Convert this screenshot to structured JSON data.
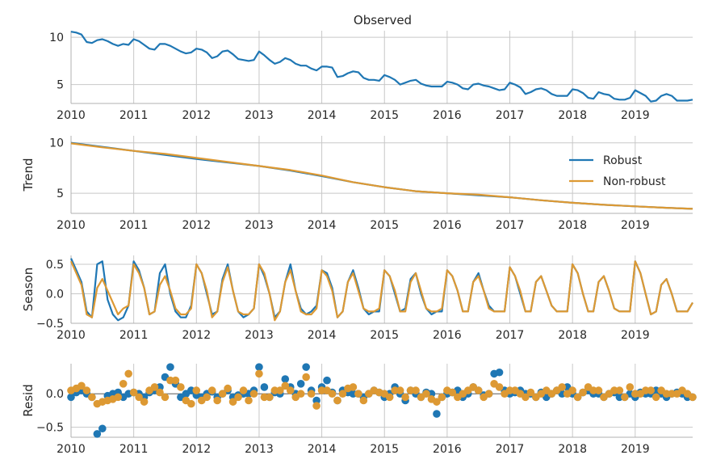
{
  "chart_data": [
    {
      "type": "line",
      "title": "Observed",
      "ylabel": "",
      "ylim": [
        3.0,
        10.7
      ],
      "yticks": [
        5,
        10
      ],
      "xlim": [
        2010.0,
        2019.9167
      ],
      "xticks": [
        2010,
        2011,
        2012,
        2013,
        2014,
        2015,
        2016,
        2017,
        2018,
        2019
      ],
      "grid": true,
      "colors": {
        "Robust": "#1f77b4"
      },
      "series": [
        {
          "color_key": "Robust",
          "x": [
            2010.0,
            2010.0833,
            2010.1667,
            2010.25,
            2010.3333,
            2010.4167,
            2010.5,
            2010.5833,
            2010.6667,
            2010.75,
            2010.8333,
            2010.9167,
            2011.0,
            2011.0833,
            2011.1667,
            2011.25,
            2011.3333,
            2011.4167,
            2011.5,
            2011.5833,
            2011.6667,
            2011.75,
            2011.8333,
            2011.9167,
            2012.0,
            2012.0833,
            2012.1667,
            2012.25,
            2012.3333,
            2012.4167,
            2012.5,
            2012.5833,
            2012.6667,
            2012.75,
            2012.8333,
            2012.9167,
            2013.0,
            2013.0833,
            2013.1667,
            2013.25,
            2013.3333,
            2013.4167,
            2013.5,
            2013.5833,
            2013.6667,
            2013.75,
            2013.8333,
            2013.9167,
            2014.0,
            2014.0833,
            2014.1667,
            2014.25,
            2014.3333,
            2014.4167,
            2014.5,
            2014.5833,
            2014.6667,
            2014.75,
            2014.8333,
            2014.9167,
            2015.0,
            2015.0833,
            2015.1667,
            2015.25,
            2015.3333,
            2015.4167,
            2015.5,
            2015.5833,
            2015.6667,
            2015.75,
            2015.8333,
            2015.9167,
            2016.0,
            2016.0833,
            2016.1667,
            2016.25,
            2016.3333,
            2016.4167,
            2016.5,
            2016.5833,
            2016.6667,
            2016.75,
            2016.8333,
            2016.9167,
            2017.0,
            2017.0833,
            2017.1667,
            2017.25,
            2017.3333,
            2017.4167,
            2017.5,
            2017.5833,
            2017.6667,
            2017.75,
            2017.8333,
            2017.9167,
            2018.0,
            2018.0833,
            2018.1667,
            2018.25,
            2018.3333,
            2018.4167,
            2018.5,
            2018.5833,
            2018.6667,
            2018.75,
            2018.8333,
            2018.9167,
            2019.0,
            2019.0833,
            2019.1667,
            2019.25,
            2019.3333,
            2019.4167,
            2019.5,
            2019.5833,
            2019.6667,
            2019.75,
            2019.8333,
            2019.9167
          ],
          "values": [
            10.6,
            10.5,
            10.3,
            9.5,
            9.4,
            9.7,
            9.8,
            9.6,
            9.3,
            9.1,
            9.3,
            9.2,
            9.8,
            9.6,
            9.2,
            8.8,
            8.7,
            9.3,
            9.3,
            9.1,
            8.8,
            8.5,
            8.3,
            8.4,
            8.8,
            8.7,
            8.4,
            7.8,
            8.0,
            8.5,
            8.6,
            8.2,
            7.7,
            7.6,
            7.5,
            7.6,
            8.5,
            8.1,
            7.6,
            7.2,
            7.4,
            7.8,
            7.6,
            7.2,
            7.0,
            7.0,
            6.7,
            6.5,
            6.9,
            6.9,
            6.8,
            5.8,
            5.9,
            6.2,
            6.4,
            6.3,
            5.7,
            5.5,
            5.5,
            5.4,
            6.0,
            5.8,
            5.5,
            5.0,
            5.2,
            5.4,
            5.5,
            5.1,
            4.9,
            4.8,
            4.8,
            4.8,
            5.3,
            5.2,
            5.0,
            4.6,
            4.5,
            5.0,
            5.1,
            4.9,
            4.8,
            4.6,
            4.4,
            4.5,
            5.2,
            5.0,
            4.7,
            4.0,
            4.2,
            4.5,
            4.6,
            4.4,
            4.0,
            3.8,
            3.8,
            3.8,
            4.5,
            4.4,
            4.1,
            3.6,
            3.5,
            4.2,
            4.0,
            3.9,
            3.5,
            3.4,
            3.4,
            3.6,
            4.4,
            4.1,
            3.8,
            3.2,
            3.3,
            3.8,
            4.0,
            3.8,
            3.3,
            3.3,
            3.3,
            3.4
          ]
        }
      ]
    },
    {
      "type": "line",
      "title": "",
      "ylabel": "Trend",
      "ylim": [
        3.0,
        10.7
      ],
      "yticks": [
        5,
        10
      ],
      "xlim": [
        2010.0,
        2019.9167
      ],
      "xticks": [
        2010,
        2011,
        2012,
        2013,
        2014,
        2015,
        2016,
        2017,
        2018,
        2019
      ],
      "grid": true,
      "legend": {
        "position": "right",
        "entries": [
          "Robust",
          "Non-robust"
        ]
      },
      "colors": {
        "Robust": "#1f77b4",
        "Non-robust": "#dd9933"
      },
      "series": [
        {
          "name": "Robust",
          "x": [
            2010.0,
            2010.5,
            2011.0,
            2011.5,
            2012.0,
            2012.5,
            2013.0,
            2013.5,
            2014.0,
            2014.5,
            2015.0,
            2015.5,
            2016.0,
            2016.5,
            2017.0,
            2017.5,
            2018.0,
            2018.5,
            2019.0,
            2019.5,
            2019.9167
          ],
          "values": [
            10.0,
            9.6,
            9.2,
            8.8,
            8.4,
            8.05,
            7.7,
            7.25,
            6.7,
            6.1,
            5.6,
            5.2,
            5.0,
            4.8,
            4.6,
            4.3,
            4.05,
            3.85,
            3.7,
            3.55,
            3.45
          ]
        },
        {
          "name": "Non-robust",
          "x": [
            2010.0,
            2010.5,
            2011.0,
            2011.5,
            2012.0,
            2012.5,
            2013.0,
            2013.5,
            2014.0,
            2014.5,
            2015.0,
            2015.5,
            2016.0,
            2016.5,
            2017.0,
            2017.5,
            2018.0,
            2018.5,
            2019.0,
            2019.5,
            2019.9167
          ],
          "values": [
            9.95,
            9.55,
            9.2,
            8.9,
            8.5,
            8.1,
            7.7,
            7.3,
            6.75,
            6.1,
            5.6,
            5.2,
            5.0,
            4.85,
            4.6,
            4.3,
            4.05,
            3.85,
            3.7,
            3.55,
            3.45
          ]
        }
      ]
    },
    {
      "type": "line",
      "title": "",
      "ylabel": "Season",
      "ylim": [
        -0.5,
        0.65
      ],
      "yticks": [
        0.5,
        0.0,
        -0.5
      ],
      "ytick_labels": [
        "0.5",
        "0.0",
        "−0.5"
      ],
      "xlim": [
        2010.0,
        2019.9167
      ],
      "xticks": [
        2010,
        2011,
        2012,
        2013,
        2014,
        2015,
        2016,
        2017,
        2018,
        2019
      ],
      "grid": true,
      "colors": {
        "Robust": "#1f77b4",
        "Non-robust": "#dd9933"
      },
      "series": [
        {
          "color_key": "Robust",
          "x_start": 2010.0,
          "x_step": 0.08333,
          "values": [
            0.6,
            0.4,
            0.2,
            -0.3,
            -0.4,
            0.5,
            0.55,
            -0.1,
            -0.35,
            -0.45,
            -0.4,
            -0.2,
            0.55,
            0.4,
            0.1,
            -0.35,
            -0.3,
            0.35,
            0.5,
            0.0,
            -0.3,
            -0.4,
            -0.4,
            -0.2,
            0.5,
            0.35,
            0.0,
            -0.35,
            -0.3,
            0.25,
            0.5,
            0.05,
            -0.3,
            -0.4,
            -0.35,
            -0.25,
            0.5,
            0.3,
            0.0,
            -0.4,
            -0.3,
            0.2,
            0.5,
            0.05,
            -0.25,
            -0.35,
            -0.3,
            -0.2,
            0.4,
            0.35,
            0.1,
            -0.4,
            -0.3,
            0.2,
            0.4,
            0.1,
            -0.25,
            -0.35,
            -0.3,
            -0.3,
            0.4,
            0.3,
            0.0,
            -0.3,
            -0.25,
            0.25,
            0.35,
            0.0,
            -0.25,
            -0.35,
            -0.3,
            -0.3,
            0.4,
            0.3,
            0.05,
            -0.3,
            -0.3,
            0.2,
            0.35,
            0.05,
            -0.2,
            -0.3,
            -0.3,
            -0.3,
            0.45,
            0.3,
            0.0,
            -0.3,
            -0.3,
            0.2,
            0.3,
            0.05,
            -0.2,
            -0.3,
            -0.3,
            -0.3,
            0.5,
            0.35,
            0.0,
            -0.3,
            -0.3,
            0.2,
            0.3,
            0.05,
            -0.25,
            -0.3,
            -0.3,
            -0.3,
            0.55,
            0.35,
            0.0,
            -0.35,
            -0.3,
            0.15,
            0.25,
            0.0,
            -0.3,
            -0.3,
            -0.3,
            -0.15
          ]
        },
        {
          "color_key": "Non-robust",
          "x_start": 2010.0,
          "x_step": 0.08333,
          "values": [
            0.55,
            0.35,
            0.15,
            -0.35,
            -0.4,
            0.1,
            0.25,
            0.05,
            -0.15,
            -0.35,
            -0.25,
            -0.2,
            0.5,
            0.35,
            0.1,
            -0.35,
            -0.3,
            0.15,
            0.3,
            0.05,
            -0.25,
            -0.35,
            -0.35,
            -0.25,
            0.5,
            0.35,
            0.05,
            -0.4,
            -0.3,
            0.2,
            0.45,
            0.05,
            -0.3,
            -0.35,
            -0.35,
            -0.25,
            0.5,
            0.35,
            0.0,
            -0.45,
            -0.3,
            0.2,
            0.4,
            0.05,
            -0.3,
            -0.35,
            -0.35,
            -0.25,
            0.4,
            0.3,
            0.05,
            -0.4,
            -0.3,
            0.2,
            0.35,
            0.05,
            -0.25,
            -0.3,
            -0.3,
            -0.25,
            0.4,
            0.3,
            0.05,
            -0.3,
            -0.3,
            0.2,
            0.35,
            0.05,
            -0.25,
            -0.3,
            -0.3,
            -0.25,
            0.4,
            0.3,
            0.05,
            -0.3,
            -0.3,
            0.2,
            0.3,
            0.05,
            -0.25,
            -0.3,
            -0.3,
            -0.3,
            0.45,
            0.3,
            0.05,
            -0.3,
            -0.3,
            0.2,
            0.3,
            0.05,
            -0.2,
            -0.3,
            -0.3,
            -0.3,
            0.5,
            0.35,
            0.0,
            -0.3,
            -0.3,
            0.2,
            0.3,
            0.05,
            -0.25,
            -0.3,
            -0.3,
            -0.3,
            0.55,
            0.35,
            0.0,
            -0.35,
            -0.3,
            0.15,
            0.25,
            0.0,
            -0.3,
            -0.3,
            -0.3,
            -0.15
          ]
        }
      ]
    },
    {
      "type": "scatter",
      "title": "",
      "ylabel": "Resid",
      "ylim": [
        -0.65,
        0.45
      ],
      "yticks": [
        0.0,
        -0.5
      ],
      "ytick_labels": [
        "0.0",
        "−0.5"
      ],
      "xlim": [
        2010.0,
        2019.9167
      ],
      "xticks": [
        2010,
        2011,
        2012,
        2013,
        2014,
        2015,
        2016,
        2017,
        2018,
        2019
      ],
      "grid": true,
      "zero_line": true,
      "colors": {
        "Robust": "#1f77b4",
        "Non-robust": "#dd9933"
      },
      "series": [
        {
          "color_key": "Robust",
          "x_start": 2010.0,
          "x_step": 0.08333,
          "values": [
            -0.05,
            0.02,
            0.05,
            0.0,
            -0.05,
            -0.6,
            -0.52,
            -0.03,
            0.0,
            0.02,
            -0.05,
            0.0,
            0.02,
            0.0,
            -0.05,
            0.02,
            0.05,
            0.1,
            0.25,
            0.4,
            0.15,
            -0.05,
            0.0,
            0.05,
            -0.02,
            -0.05,
            0.0,
            0.03,
            -0.05,
            0.0,
            0.05,
            -0.05,
            -0.02,
            0.0,
            0.0,
            0.05,
            0.4,
            0.1,
            -0.05,
            0.02,
            0.0,
            0.22,
            0.1,
            0.0,
            0.15,
            0.4,
            0.05,
            -0.1,
            0.1,
            0.2,
            0.02,
            -0.1,
            0.05,
            0.02,
            0.0,
            0.0,
            -0.05,
            0.0,
            0.05,
            0.02,
            -0.05,
            0.0,
            0.1,
            0.0,
            -0.1,
            0.05,
            0.0,
            -0.05,
            0.02,
            0.0,
            -0.3,
            -0.05,
            0.0,
            0.02,
            0.05,
            -0.05,
            0.0,
            0.1,
            0.05,
            -0.02,
            0.0,
            0.3,
            0.32,
            0.05,
            0.0,
            0.02,
            0.05,
            0.0,
            0.0,
            -0.05,
            0.02,
            -0.05,
            0.0,
            0.05,
            0.0,
            0.1,
            0.0,
            -0.05,
            0.02,
            0.05,
            0.0,
            0.0,
            -0.05,
            0.0,
            0.02,
            -0.05,
            -0.05,
            0.0,
            -0.05,
            0.02,
            0.0,
            0.0,
            0.05,
            0.0,
            -0.05,
            0.0,
            0.02,
            0.0,
            -0.05,
            -0.05
          ]
        },
        {
          "color_key": "Non-robust",
          "x_start": 2010.0,
          "x_step": 0.08333,
          "values": [
            0.05,
            0.08,
            0.12,
            0.05,
            -0.05,
            -0.15,
            -0.12,
            -0.1,
            -0.08,
            -0.05,
            0.15,
            0.3,
            0.02,
            -0.05,
            -0.12,
            0.05,
            0.1,
            0.02,
            -0.05,
            0.2,
            0.2,
            0.1,
            -0.1,
            -0.15,
            0.05,
            -0.1,
            -0.05,
            0.05,
            -0.1,
            0.0,
            0.08,
            -0.12,
            -0.05,
            0.05,
            -0.1,
            0.0,
            0.3,
            -0.05,
            -0.05,
            0.05,
            0.05,
            0.12,
            0.05,
            -0.05,
            0.0,
            0.25,
            0.0,
            -0.18,
            0.05,
            0.05,
            0.0,
            -0.1,
            0.0,
            0.08,
            0.1,
            0.0,
            -0.1,
            0.0,
            0.05,
            0.02,
            0.0,
            -0.05,
            0.05,
            0.05,
            -0.05,
            0.05,
            0.05,
            -0.05,
            0.0,
            -0.08,
            -0.12,
            -0.05,
            0.05,
            0.02,
            -0.05,
            0.0,
            0.05,
            0.1,
            0.05,
            -0.05,
            0.0,
            0.15,
            0.1,
            0.0,
            0.05,
            0.05,
            0.0,
            -0.05,
            0.02,
            -0.05,
            0.0,
            0.05,
            0.0,
            0.05,
            0.1,
            0.0,
            0.05,
            -0.05,
            0.02,
            0.1,
            0.05,
            0.05,
            -0.05,
            0.0,
            0.05,
            0.05,
            -0.05,
            0.1,
            0.0,
            0.0,
            0.05,
            0.05,
            -0.05,
            0.05,
            0.0,
            0.0,
            0.0,
            0.05,
            0.0,
            -0.05
          ]
        }
      ]
    }
  ]
}
